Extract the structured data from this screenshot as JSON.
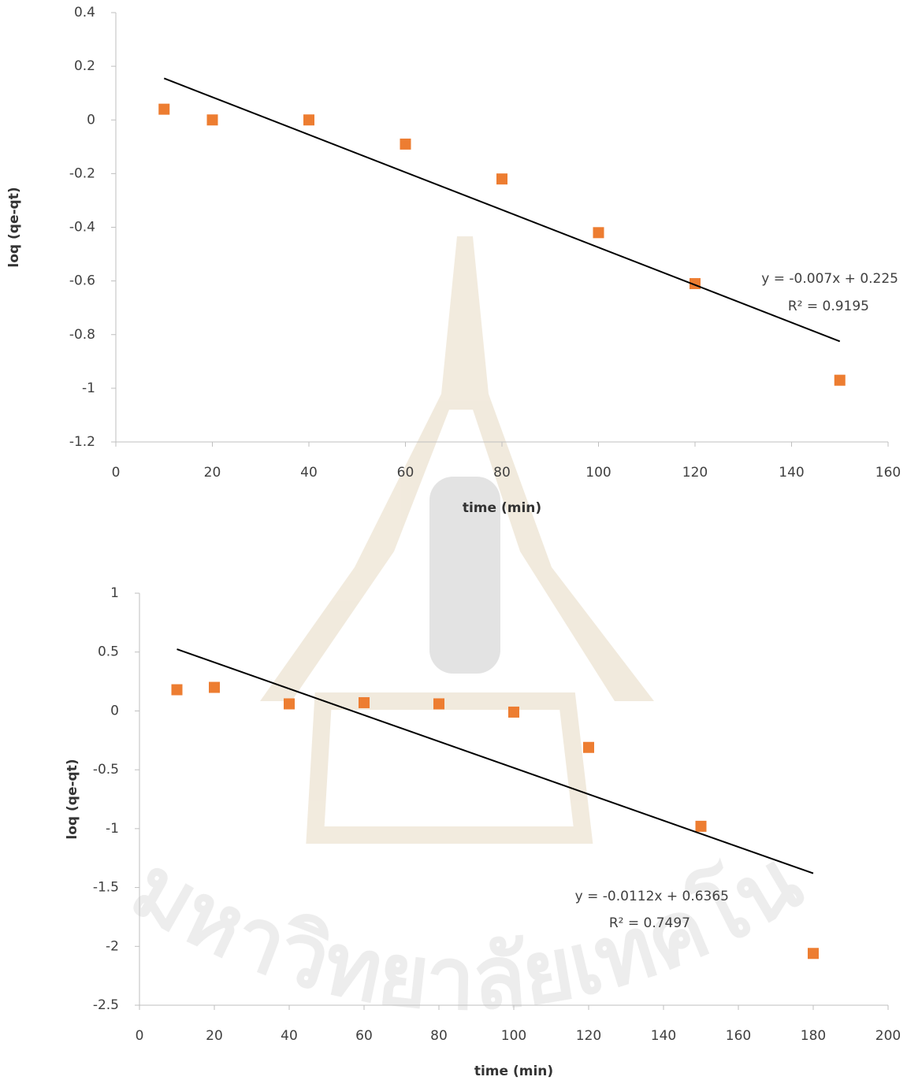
{
  "watermark": "มหาวิทยาลัยเทคโนโลยีสุรนาร",
  "chart_data": [
    {
      "type": "scatter",
      "x_label": "time (min)",
      "y_label": "loq (qe-qt)",
      "x": [
        10,
        20,
        40,
        60,
        80,
        100,
        120,
        150
      ],
      "values": [
        0.04,
        0,
        0,
        -0.09,
        -0.22,
        -0.42,
        -0.61,
        -0.97
      ],
      "color": "#ed7d31",
      "xlim": [
        0,
        160
      ],
      "xticks": [
        0,
        20,
        40,
        60,
        80,
        100,
        120,
        140,
        160
      ],
      "ylim": [
        -1.2,
        0.4
      ],
      "yticks": [
        -1.2,
        -1,
        -0.8,
        -0.6,
        -0.4,
        -0.2,
        0,
        0.2,
        0.4
      ],
      "trendline": {
        "x": [
          10,
          150
        ],
        "y": [
          0.155,
          -0.825
        ],
        "color": "#000000",
        "equation": "y = -0.007x + 0.225",
        "r2": "R² = 0.9195"
      }
    },
    {
      "type": "scatter",
      "x_label": "time (min)",
      "y_label": "loq (qe-qt)",
      "x": [
        10,
        20,
        40,
        60,
        80,
        100,
        120,
        150,
        180
      ],
      "values": [
        0.18,
        0.2,
        0.06,
        0.07,
        0.06,
        -0.01,
        -0.31,
        -0.98,
        -2.06
      ],
      "color": "#ed7d31",
      "xlim": [
        0,
        200
      ],
      "xticks": [
        0,
        20,
        40,
        60,
        80,
        100,
        120,
        140,
        160,
        180,
        200
      ],
      "ylim": [
        -2.5,
        1
      ],
      "yticks": [
        -2.5,
        -2,
        -1.5,
        -1,
        -0.5,
        0,
        0.5,
        1
      ],
      "trendline": {
        "x": [
          10,
          180
        ],
        "y": [
          0.5245,
          -1.3795
        ],
        "color": "#000000",
        "equation": "y = -0.0112x + 0.6365",
        "r2": "R² = 0.7497"
      }
    }
  ]
}
